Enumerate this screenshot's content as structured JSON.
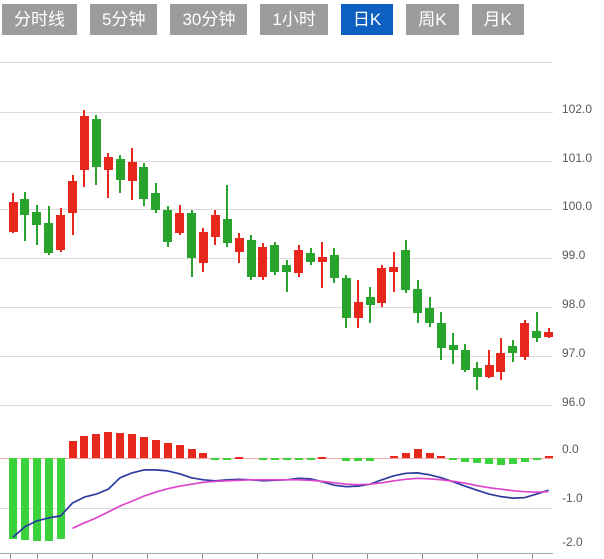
{
  "tabs": {
    "items": [
      {
        "label": "分时线",
        "active": false
      },
      {
        "label": "5分钟",
        "active": false
      },
      {
        "label": "30分钟",
        "active": false
      },
      {
        "label": "1小时",
        "active": false
      },
      {
        "label": "日K",
        "active": true
      },
      {
        "label": "周K",
        "active": false
      },
      {
        "label": "月K",
        "active": false
      }
    ]
  },
  "colors": {
    "up_red": "#e7271b",
    "down_green": "#28a32c",
    "macd_green": "#3bd23b",
    "macd_red": "#e7271b",
    "dif_line": "#2c3c9e",
    "dea_line": "#dd44cc",
    "grid": "#dcdcdc",
    "zero_line": "#f0a7a7",
    "label_text": "#595959",
    "tab_bg": "#9c9c9c",
    "tab_active_bg": "#0d60c2",
    "tab_text": "#ffffff"
  },
  "chart_data": {
    "type": "candlestick",
    "panels": [
      "price",
      "macd"
    ],
    "price_axis": {
      "ticks": [
        102,
        101,
        100,
        99,
        98,
        97,
        96
      ],
      "labels": [
        "102.0",
        "101.0",
        "100.0",
        "99.0",
        "98.0",
        "97.0",
        "96.0"
      ],
      "range": [
        96,
        102
      ]
    },
    "macd_axis": {
      "ticks": [
        0,
        -1,
        -2
      ],
      "labels": [
        "0.0",
        "-1.0",
        "-2.0"
      ],
      "range": [
        -2,
        0.6
      ]
    },
    "candles_ohlc": [
      {
        "o": 99.54,
        "h": 100.33,
        "l": 99.51,
        "c": 100.15
      },
      {
        "o": 100.22,
        "h": 100.36,
        "l": 99.34,
        "c": 99.88
      },
      {
        "o": 99.95,
        "h": 100.09,
        "l": 99.27,
        "c": 99.68
      },
      {
        "o": 99.71,
        "h": 100.06,
        "l": 99.06,
        "c": 99.1
      },
      {
        "o": 99.17,
        "h": 100.03,
        "l": 99.12,
        "c": 99.88
      },
      {
        "o": 99.92,
        "h": 100.7,
        "l": 99.47,
        "c": 100.57
      },
      {
        "o": 100.81,
        "h": 102.03,
        "l": 100.46,
        "c": 101.91
      },
      {
        "o": 101.86,
        "h": 101.93,
        "l": 100.5,
        "c": 100.87
      },
      {
        "o": 100.81,
        "h": 101.15,
        "l": 100.23,
        "c": 101.08
      },
      {
        "o": 101.04,
        "h": 101.11,
        "l": 100.33,
        "c": 100.6
      },
      {
        "o": 100.57,
        "h": 101.25,
        "l": 100.19,
        "c": 100.97
      },
      {
        "o": 100.87,
        "h": 100.94,
        "l": 100.06,
        "c": 100.22
      },
      {
        "o": 100.33,
        "h": 100.53,
        "l": 99.92,
        "c": 99.99
      },
      {
        "o": 99.99,
        "h": 100.06,
        "l": 99.23,
        "c": 99.34
      },
      {
        "o": 99.51,
        "h": 100.09,
        "l": 99.47,
        "c": 99.92
      },
      {
        "o": 99.92,
        "h": 99.99,
        "l": 98.61,
        "c": 99.0
      },
      {
        "o": 98.89,
        "h": 99.61,
        "l": 98.72,
        "c": 99.54
      },
      {
        "o": 99.44,
        "h": 99.99,
        "l": 99.27,
        "c": 99.88
      },
      {
        "o": 99.81,
        "h": 100.5,
        "l": 99.23,
        "c": 99.3
      },
      {
        "o": 99.13,
        "h": 99.51,
        "l": 98.89,
        "c": 99.41
      },
      {
        "o": 99.38,
        "h": 99.47,
        "l": 98.55,
        "c": 98.62
      },
      {
        "o": 98.62,
        "h": 99.3,
        "l": 98.55,
        "c": 99.23
      },
      {
        "o": 99.27,
        "h": 99.34,
        "l": 98.65,
        "c": 98.72
      },
      {
        "o": 98.86,
        "h": 98.96,
        "l": 98.31,
        "c": 98.72
      },
      {
        "o": 98.69,
        "h": 99.27,
        "l": 98.62,
        "c": 99.17
      },
      {
        "o": 99.1,
        "h": 99.21,
        "l": 98.86,
        "c": 98.93
      },
      {
        "o": 98.93,
        "h": 99.34,
        "l": 98.38,
        "c": 99.03
      },
      {
        "o": 99.06,
        "h": 99.2,
        "l": 98.48,
        "c": 98.59
      },
      {
        "o": 98.59,
        "h": 98.65,
        "l": 97.56,
        "c": 97.77
      },
      {
        "o": 97.77,
        "h": 98.55,
        "l": 97.56,
        "c": 98.11
      },
      {
        "o": 98.21,
        "h": 98.41,
        "l": 97.66,
        "c": 98.04
      },
      {
        "o": 98.07,
        "h": 98.86,
        "l": 98.0,
        "c": 98.79
      },
      {
        "o": 98.72,
        "h": 99.13,
        "l": 98.31,
        "c": 98.82
      },
      {
        "o": 99.17,
        "h": 99.38,
        "l": 98.28,
        "c": 98.35
      },
      {
        "o": 98.36,
        "h": 98.55,
        "l": 97.66,
        "c": 97.87
      },
      {
        "o": 97.97,
        "h": 98.21,
        "l": 97.59,
        "c": 97.66
      },
      {
        "o": 97.66,
        "h": 97.9,
        "l": 96.91,
        "c": 97.15
      },
      {
        "o": 97.22,
        "h": 97.46,
        "l": 96.84,
        "c": 97.12
      },
      {
        "o": 97.12,
        "h": 97.25,
        "l": 96.67,
        "c": 96.71
      },
      {
        "o": 96.74,
        "h": 96.88,
        "l": 96.3,
        "c": 96.57
      },
      {
        "o": 96.56,
        "h": 97.12,
        "l": 96.54,
        "c": 96.81
      },
      {
        "o": 96.67,
        "h": 97.36,
        "l": 96.5,
        "c": 97.05
      },
      {
        "o": 97.19,
        "h": 97.32,
        "l": 96.88,
        "c": 97.05
      },
      {
        "o": 96.98,
        "h": 97.73,
        "l": 96.91,
        "c": 97.66
      },
      {
        "o": 97.51,
        "h": 97.9,
        "l": 97.28,
        "c": 97.37
      },
      {
        "o": 97.39,
        "h": 97.56,
        "l": 97.36,
        "c": 97.49
      }
    ],
    "macd": {
      "histogram": [
        -1.63,
        -1.66,
        -1.67,
        -1.68,
        -1.64,
        0.34,
        0.44,
        0.48,
        0.52,
        0.51,
        0.48,
        0.43,
        0.37,
        0.3,
        0.26,
        0.18,
        0.1,
        -0.03,
        -0.03,
        0.03,
        0,
        -0.04,
        -0.04,
        -0.05,
        -0.04,
        -0.04,
        0.03,
        0,
        -0.06,
        -0.07,
        -0.06,
        0,
        0.04,
        0.1,
        0.18,
        0.1,
        0.04,
        -0.05,
        -0.08,
        -0.11,
        -0.13,
        -0.15,
        -0.13,
        -0.08,
        -0.05,
        0.04
      ],
      "dif": [
        -1.6,
        -1.39,
        -1.27,
        -1.21,
        -1.17,
        -0.91,
        -0.79,
        -0.73,
        -0.63,
        -0.4,
        -0.3,
        -0.24,
        -0.24,
        -0.26,
        -0.32,
        -0.4,
        -0.44,
        -0.46,
        -0.44,
        -0.43,
        -0.44,
        -0.46,
        -0.45,
        -0.44,
        -0.41,
        -0.42,
        -0.48,
        -0.55,
        -0.58,
        -0.57,
        -0.53,
        -0.44,
        -0.36,
        -0.31,
        -0.3,
        -0.34,
        -0.4,
        -0.48,
        -0.57,
        -0.65,
        -0.73,
        -0.78,
        -0.81,
        -0.8,
        -0.73,
        -0.65
      ],
      "dea": [
        null,
        null,
        null,
        null,
        null,
        -1.42,
        -1.31,
        -1.21,
        -1.09,
        -0.97,
        -0.87,
        -0.77,
        -0.69,
        -0.62,
        -0.57,
        -0.53,
        -0.49,
        -0.47,
        -0.46,
        -0.45,
        -0.44,
        -0.44,
        -0.44,
        -0.44,
        -0.44,
        -0.45,
        -0.47,
        -0.5,
        -0.53,
        -0.54,
        -0.53,
        -0.5,
        -0.46,
        -0.43,
        -0.41,
        -0.42,
        -0.44,
        -0.47,
        -0.51,
        -0.56,
        -0.6,
        -0.63,
        -0.66,
        -0.68,
        -0.69,
        -0.68
      ]
    }
  }
}
